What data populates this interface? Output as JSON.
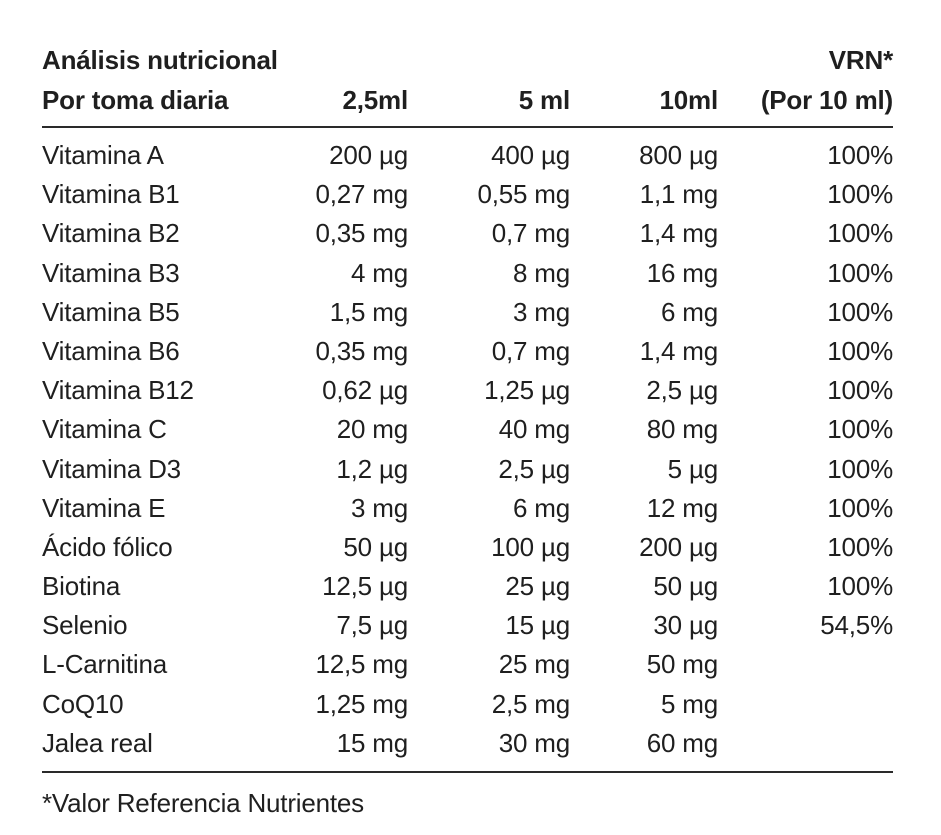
{
  "header": {
    "row1": {
      "col1": "Análisis nutricional",
      "col2": "",
      "col3": "",
      "col4": "",
      "col5": "VRN*"
    },
    "row2": {
      "col1": "Por toma diaria",
      "col2": "2,5ml",
      "col3": "5 ml",
      "col4": "10ml",
      "col5": "(Por 10 ml)"
    }
  },
  "rows": [
    {
      "name": "Vitamina A",
      "v25": "200 µg",
      "v5": "400 µg",
      "v10": "800 µg",
      "vrn": "100%"
    },
    {
      "name": "Vitamina B1",
      "v25": "0,27 mg",
      "v5": "0,55 mg",
      "v10": "1,1 mg",
      "vrn": "100%"
    },
    {
      "name": "Vitamina B2",
      "v25": "0,35 mg",
      "v5": "0,7 mg",
      "v10": "1,4 mg",
      "vrn": "100%"
    },
    {
      "name": "Vitamina B3",
      "v25": "4 mg",
      "v5": "8 mg",
      "v10": "16 mg",
      "vrn": "100%"
    },
    {
      "name": "Vitamina B5",
      "v25": "1,5 mg",
      "v5": "3 mg",
      "v10": "6 mg",
      "vrn": "100%"
    },
    {
      "name": "Vitamina B6",
      "v25": "0,35 mg",
      "v5": "0,7 mg",
      "v10": "1,4 mg",
      "vrn": "100%"
    },
    {
      "name": "Vitamina B12",
      "v25": "0,62 µg",
      "v5": "1,25 µg",
      "v10": "2,5 µg",
      "vrn": "100%"
    },
    {
      "name": "Vitamina C",
      "v25": "20 mg",
      "v5": "40 mg",
      "v10": "80 mg",
      "vrn": "100%"
    },
    {
      "name": "Vitamina D3",
      "v25": "1,2 µg",
      "v5": "2,5 µg",
      "v10": "5 µg",
      "vrn": "100%"
    },
    {
      "name": "Vitamina E",
      "v25": "3 mg",
      "v5": "6 mg",
      "v10": "12 mg",
      "vrn": "100%"
    },
    {
      "name": "Ácido fólico",
      "v25": "50 µg",
      "v5": "100 µg",
      "v10": "200 µg",
      "vrn": "100%"
    },
    {
      "name": "Biotina",
      "v25": "12,5 µg",
      "v5": "25 µg",
      "v10": "50 µg",
      "vrn": "100%"
    },
    {
      "name": "Selenio",
      "v25": "7,5 µg",
      "v5": "15 µg",
      "v10": "30 µg",
      "vrn": "54,5%"
    },
    {
      "name": "L-Carnitina",
      "v25": "12,5 mg",
      "v5": "25 mg",
      "v10": "50 mg",
      "vrn": ""
    },
    {
      "name": "CoQ10",
      "v25": "1,25 mg",
      "v5": "2,5 mg",
      "v10": "5 mg",
      "vrn": ""
    },
    {
      "name": "Jalea real",
      "v25": "15 mg",
      "v5": "30 mg",
      "v10": "60 mg",
      "vrn": ""
    }
  ],
  "footnote": "*Valor Referencia Nutrientes",
  "colors": {
    "text": "#1f1f1f",
    "rule": "#2a2a2a",
    "background": "#ffffff"
  }
}
